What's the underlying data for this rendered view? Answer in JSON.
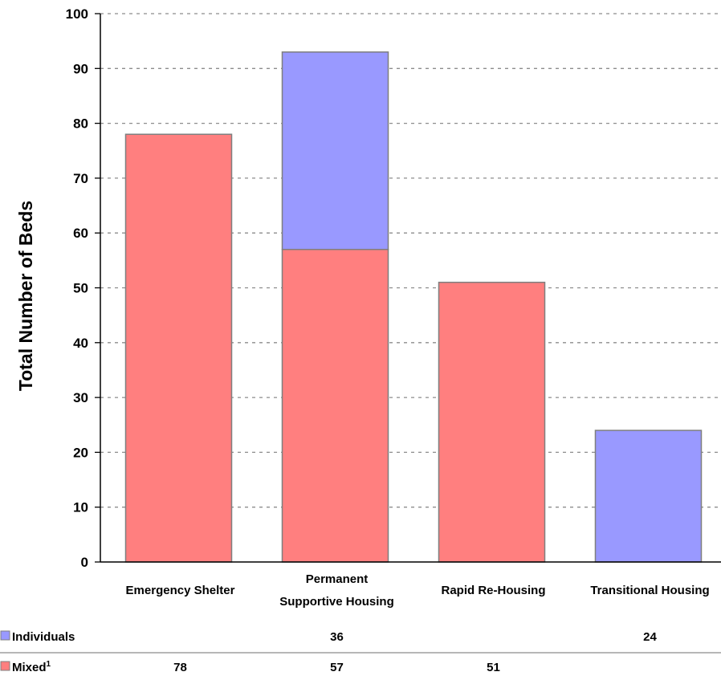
{
  "chart_data": {
    "type": "bar",
    "stacked": true,
    "title": "",
    "xlabel": "",
    "ylabel": "Total Number of Beds",
    "ylim": [
      0,
      100
    ],
    "yticks": [
      0,
      10,
      20,
      30,
      40,
      50,
      60,
      70,
      80,
      90,
      100
    ],
    "grid": true,
    "categories": [
      [
        "Emergency Shelter"
      ],
      [
        "Permanent",
        "Supportive Housing"
      ],
      [
        "Rapid Re-Housing"
      ],
      [
        "Transitional Housing"
      ]
    ],
    "series": [
      {
        "name": "Mixed",
        "superscript": "1",
        "color": "#ff7f7f",
        "values": [
          78,
          57,
          51,
          null
        ]
      },
      {
        "name": "Individuals",
        "superscript": "",
        "color": "#9999ff",
        "values": [
          null,
          36,
          null,
          24
        ]
      }
    ],
    "table_rows": [
      {
        "series": "Individuals",
        "cells": [
          "",
          "36",
          "",
          "24"
        ]
      },
      {
        "series": "Mixed",
        "cells": [
          "78",
          "57",
          "51",
          ""
        ]
      }
    ],
    "border_color": "#7f7f7f"
  }
}
